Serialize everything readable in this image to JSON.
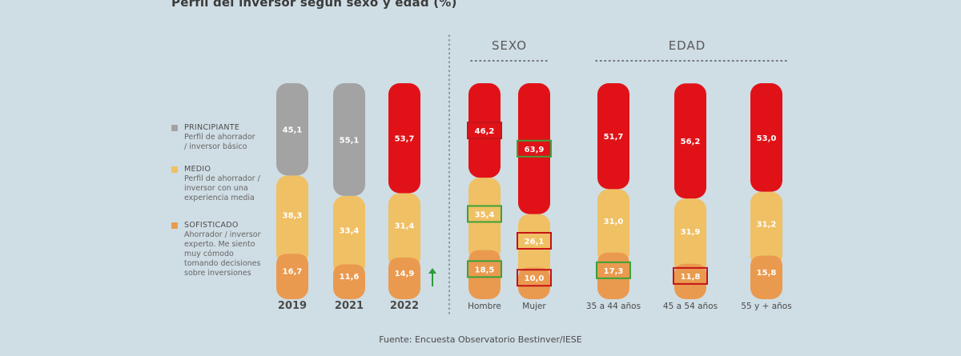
{
  "chart_data": {
    "type": "bar",
    "stacked": true,
    "title": "Perfil del inversor según sexo y edad (%)",
    "source": "Fuente: Encuesta Observatorio Bestinver/IESE",
    "group_labels": [
      "SEXO",
      "EDAD"
    ],
    "categories": [
      "2019",
      "2021",
      "2022",
      "Hombre",
      "Mujer",
      "35 a 44 años",
      "45 a 54 años",
      "55 y + años"
    ],
    "series": [
      {
        "name": "SOFISTICADO",
        "values": [
          16.7,
          11.6,
          14.9,
          18.5,
          10.0,
          17.3,
          11.8,
          15.8
        ]
      },
      {
        "name": "MEDIO",
        "values": [
          38.3,
          33.4,
          31.4,
          35.4,
          26.1,
          31.0,
          31.9,
          31.2
        ]
      },
      {
        "name": "PRINCIPIANTE",
        "values": [
          45.1,
          55.1,
          53.7,
          46.2,
          63.9,
          51.7,
          56.2,
          53.0
        ]
      }
    ],
    "value_labels": [
      [
        "16,7",
        "11,6",
        "14,9",
        "18,5",
        "10,0",
        "17,3",
        "11,8",
        "15,8"
      ],
      [
        "38,3",
        "33,4",
        "31,4",
        "35,4",
        "26,1",
        "31,0",
        "31,9",
        "31,2"
      ],
      [
        "45,1",
        "55,1",
        "53,7",
        "46,2",
        "63,9",
        "51,7",
        "56,2",
        "53,0"
      ]
    ],
    "ylim": [
      0,
      100
    ],
    "colors": {
      "SOFISTICADO": "#ea9a4f",
      "MEDIO": "#f0c064",
      "PRINCIPIANTE": "#e01218",
      "PRINCIPIANTE_2019_2021": "#a3a3a3",
      "highlight_green": "#3aa23a",
      "highlight_red": "#c41419",
      "arrow_green": "#2a9a3a"
    },
    "highlights": [
      {
        "category": "Hombre",
        "series": "PRINCIPIANTE",
        "color": "red"
      },
      {
        "category": "Hombre",
        "series": "MEDIO",
        "color": "green"
      },
      {
        "category": "Hombre",
        "series": "SOFISTICADO",
        "color": "green"
      },
      {
        "category": "Mujer",
        "series": "PRINCIPIANTE",
        "color": "green"
      },
      {
        "category": "Mujer",
        "series": "MEDIO",
        "color": "red"
      },
      {
        "category": "Mujer",
        "series": "SOFISTICADO",
        "color": "red"
      },
      {
        "category": "35 a 44 años",
        "series": "SOFISTICADO",
        "color": "green"
      },
      {
        "category": "45 a 54 años",
        "series": "SOFISTICADO",
        "color": "red"
      }
    ],
    "annotations": [
      "up-arrow-after-2022"
    ],
    "legend": [
      {
        "name": "PRINCIPIANTE",
        "desc": "Perfil de ahorrador / inversor básico"
      },
      {
        "name": "MEDIO",
        "desc": "Perfil de ahorrador / inversor con una experiencia media"
      },
      {
        "name": "SOFISTICADO",
        "desc": "Ahorrador / inversor experto. Me siento muy cómodo tomando decisiones sobre inversiones"
      }
    ],
    "legend_position": "left",
    "grid": false
  }
}
